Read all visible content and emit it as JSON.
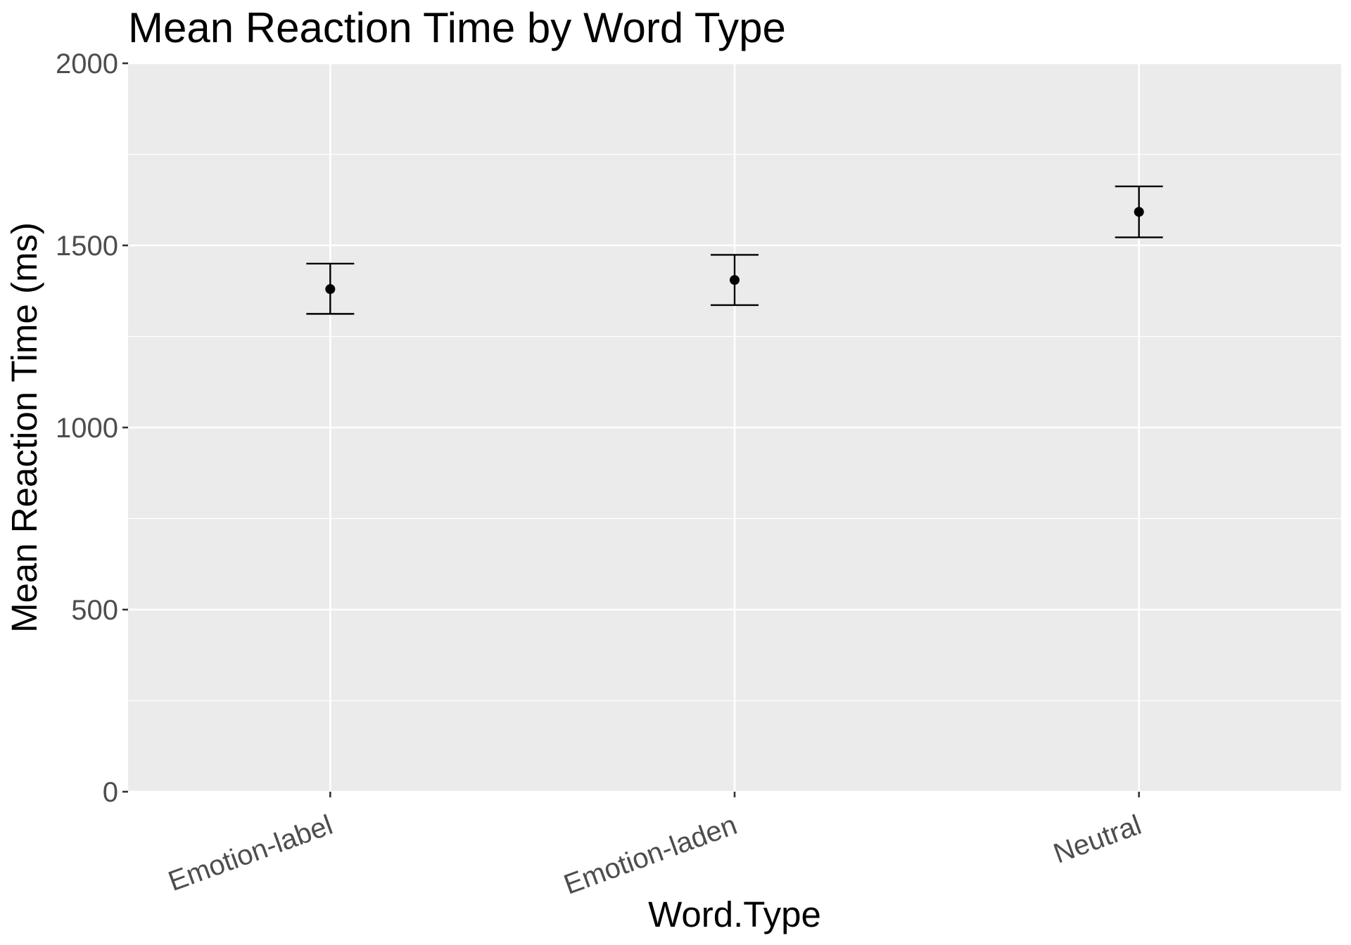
{
  "chart_data": {
    "type": "scatter",
    "title": "Mean Reaction Time by Word Type",
    "xlabel": "Word.Type",
    "ylabel": "Mean Reaction Time (ms)",
    "categories": [
      "Emotion-label",
      "Emotion-laden",
      "Neutral"
    ],
    "values": [
      1380,
      1405,
      1592
    ],
    "error_lower": [
      1312,
      1336,
      1522
    ],
    "error_upper": [
      1450,
      1474,
      1662
    ],
    "ylim": [
      0,
      2000
    ],
    "yticks": [
      "0",
      "500",
      "1000",
      "1500",
      "2000"
    ],
    "ytick_values": [
      0,
      500,
      1000,
      1500,
      2000
    ],
    "grid": true,
    "panel_background": "#ebebeb",
    "grid_color": "#ffffff",
    "point_color": "#000000",
    "tick_label_color": "#4d4d4d"
  }
}
